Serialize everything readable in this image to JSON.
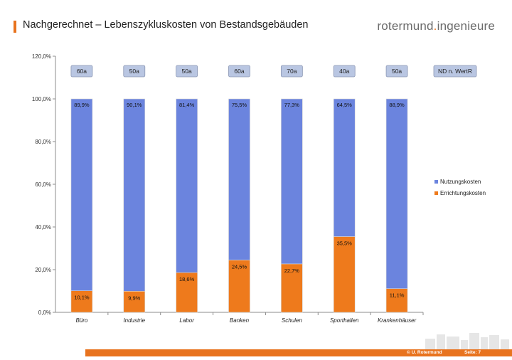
{
  "slide": {
    "title": "Nachgerechnet – Lebenszykluskosten von Bestandsgebäuden",
    "brand_main": "rotermund",
    "brand_dot": ".",
    "brand_rest": "ingenieure",
    "footer_copyright": "© U. Rotermund",
    "footer_page": "Seite: 7"
  },
  "colors": {
    "accent": "#e8731e",
    "nutzung": "#6b84de",
    "errichtung": "#ee7a1c",
    "label_box": "#b9c6e2"
  },
  "chart_data": {
    "type": "bar",
    "stacked": true,
    "categories": [
      "Büro",
      "Industrie",
      "Labor",
      "Banken",
      "Schulen",
      "Sporthallen",
      "Krankenhäuser"
    ],
    "series": [
      {
        "name": "Errichtungskosten",
        "values": [
          10.1,
          9.9,
          18.6,
          24.5,
          22.7,
          35.5,
          11.1
        ],
        "labels": [
          "10,1%",
          "9,9%",
          "18,6%",
          "24,5%",
          "22,7%",
          "35,5%",
          "11,1%"
        ]
      },
      {
        "name": "Nutzungskosten",
        "values": [
          89.9,
          90.1,
          81.4,
          75.5,
          77.3,
          64.5,
          88.9
        ],
        "labels": [
          "89,9%",
          "90,1%",
          "81,4%",
          "75,5%",
          "77,3%",
          "64,5%",
          "88,9%"
        ]
      }
    ],
    "lifespan_labels": [
      "60a",
      "50a",
      "50a",
      "60a",
      "70a",
      "40a",
      "50a"
    ],
    "lifespan_header": "ND n. WertR",
    "ylim": [
      0,
      120
    ],
    "yticks": [
      0,
      20,
      40,
      60,
      80,
      100,
      120
    ],
    "ytick_labels": [
      "0,0%",
      "20,0%",
      "40,0%",
      "60,0%",
      "80,0%",
      "100,0%",
      "120,0%"
    ],
    "legend": [
      "Nutzungskosten",
      "Errichtungskosten"
    ],
    "legend_position": "right",
    "grid": false
  }
}
